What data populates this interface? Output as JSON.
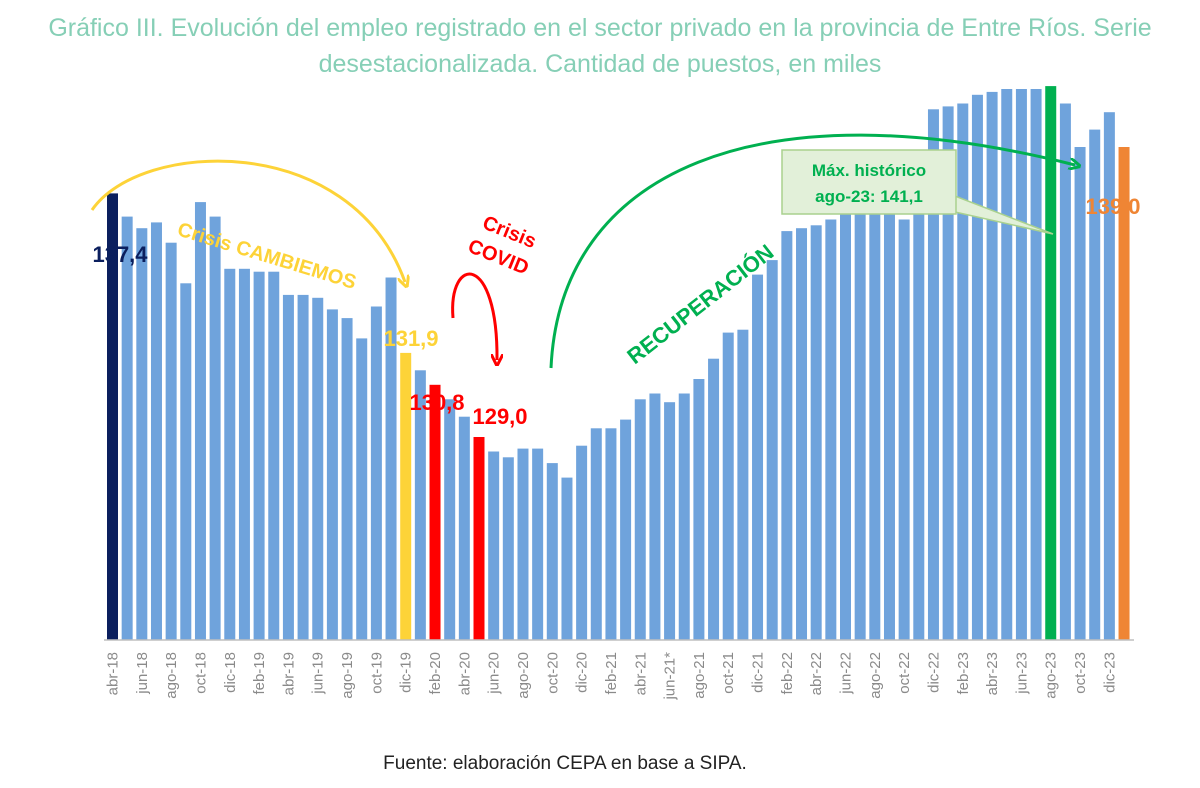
{
  "chart_data": {
    "type": "bar",
    "title": "Gráfico III. Evolución del empleo registrado en el sector privado en la provincia de Entre Ríos. Serie desestacionalizada. Cantidad de puestos, en miles",
    "source": "Fuente: elaboración CEPA en base a SIPA.",
    "xlabel": "",
    "ylabel": "",
    "ylim": [
      122,
      142
    ],
    "grid": false,
    "legend": "none",
    "categories": [
      "abr-18",
      "may-18",
      "jun-18",
      "jul-18",
      "ago-18",
      "sep-18",
      "oct-18",
      "nov-18",
      "dic-18",
      "ene-19",
      "feb-19",
      "mar-19",
      "abr-19",
      "may-19",
      "jun-19",
      "jul-19",
      "ago-19",
      "sep-19",
      "oct-19",
      "nov-19",
      "dic-19",
      "ene-20",
      "feb-20",
      "mar-20",
      "abr-20",
      "may-20",
      "jun-20",
      "jul-20",
      "ago-20",
      "sep-20",
      "oct-20",
      "nov-20",
      "dic-20",
      "ene-21",
      "feb-21",
      "mar-21",
      "abr-21",
      "may-21",
      "jun-21*",
      "jul-21",
      "ago-21",
      "sep-21",
      "oct-21",
      "nov-21",
      "dic-21",
      "ene-22",
      "feb-22",
      "mar-22",
      "abr-22",
      "may-22",
      "jun-22",
      "jul-22",
      "ago-22",
      "sep-22",
      "oct-22",
      "nov-22",
      "dic-22",
      "ene-23",
      "feb-23",
      "mar-23",
      "abr-23",
      "may-23",
      "jun-23",
      "jul-23",
      "ago-23",
      "sep-23",
      "oct-23",
      "nov-23",
      "dic-23",
      "ene-24"
    ],
    "tick_labels": [
      "abr-18",
      "jun-18",
      "ago-18",
      "oct-18",
      "dic-18",
      "feb-19",
      "abr-19",
      "jun-19",
      "ago-19",
      "oct-19",
      "dic-19",
      "feb-20",
      "abr-20",
      "jun-20",
      "ago-20",
      "oct-20",
      "dic-20",
      "feb-21",
      "abr-21",
      "jun-21*",
      "ago-21",
      "oct-21",
      "dic-21",
      "feb-22",
      "abr-22",
      "jun-22",
      "ago-22",
      "oct-22",
      "dic-22",
      "feb-23",
      "abr-23",
      "jun-23",
      "ago-23",
      "oct-23",
      "dic-23"
    ],
    "values": [
      137.4,
      136.6,
      136.2,
      136.4,
      135.7,
      134.3,
      137.1,
      136.6,
      134.8,
      134.8,
      134.7,
      134.7,
      133.9,
      133.9,
      133.8,
      133.4,
      133.1,
      132.4,
      133.5,
      134.5,
      131.9,
      131.3,
      130.8,
      130.3,
      129.7,
      129.0,
      128.5,
      128.3,
      128.6,
      128.6,
      128.1,
      127.6,
      128.7,
      129.3,
      129.3,
      129.6,
      130.3,
      130.5,
      130.2,
      130.5,
      131.0,
      131.7,
      132.6,
      132.7,
      134.6,
      135.1,
      136.1,
      136.2,
      136.3,
      136.5,
      137.0,
      137.4,
      137.0,
      137.4,
      136.5,
      138.5,
      140.3,
      140.4,
      140.5,
      140.8,
      140.9,
      141.0,
      141.0,
      141.0,
      141.1,
      140.5,
      139.0,
      139.6,
      140.2,
      139.0
    ],
    "bar_colors": {
      "default": "#6fa3dc",
      "start": "#0b1f5e",
      "crisis_cambiemos_end": "#fdd338",
      "crisis_covid": "#ff0000",
      "max": "#00b050",
      "last": "#ef8534"
    },
    "highlights": {
      "start": [
        0
      ],
      "crisis_cambiemos_end": [
        20
      ],
      "crisis_covid": [
        22,
        25
      ],
      "max": [
        64
      ],
      "last": [
        69
      ]
    },
    "annotations": {
      "start_value": "137,4",
      "dic19_value": "131,9",
      "feb20_value": "130,8",
      "may20_value": "129,0",
      "last_value": "139,0",
      "crisis_cambiemos": "Crisis CAMBIEMOS",
      "crisis_covid_line1": "Crisis",
      "crisis_covid_line2": "COVID",
      "recuperacion": "RECUPERACIÓN",
      "max_line1": "Máx. histórico",
      "max_line2": "ago-23: 141,1"
    },
    "annotation_colors": {
      "start": "#0b1f5e",
      "cambiemos": "#fdd338",
      "covid": "#ff0000",
      "recuperacion": "#00b050",
      "last": "#ef8534",
      "callout_fill": "#e2f0d9",
      "callout_border": "#a9d18e"
    }
  }
}
